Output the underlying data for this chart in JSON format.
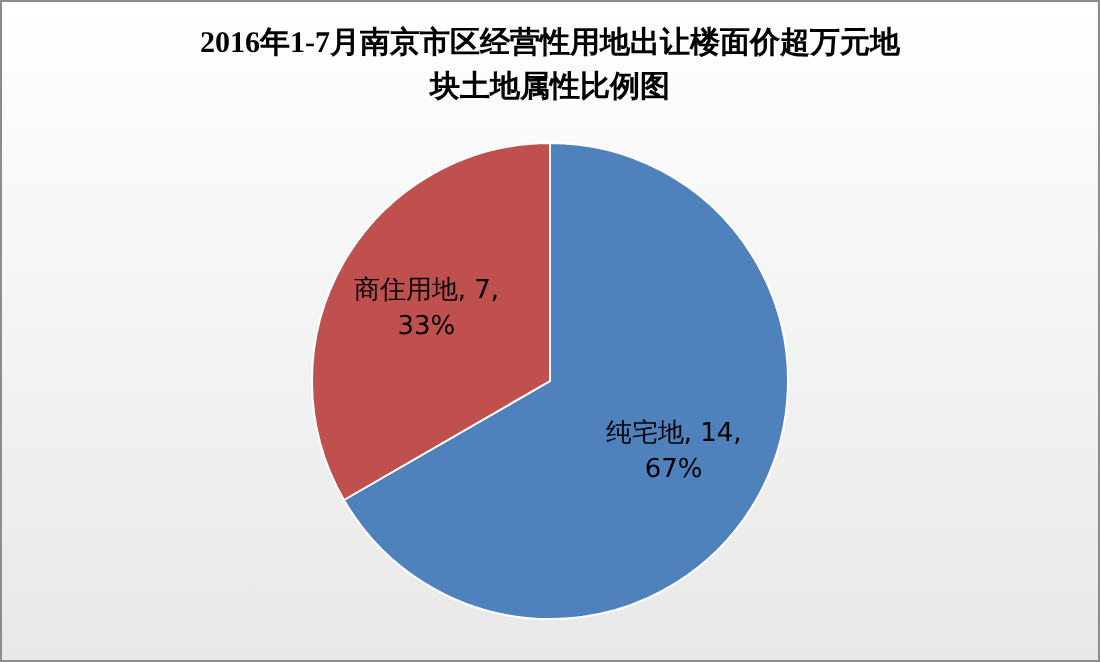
{
  "chart_data": {
    "type": "pie",
    "title": "2016年1-7月南京市区经营性用地出让楼面价超万元地块土地属性比例图",
    "categories": [
      "纯宅地",
      "商住用地"
    ],
    "values": [
      14,
      7
    ],
    "colors": [
      "#4f81bd",
      "#c0504d"
    ],
    "value_labels": [
      "14, 67%",
      "7, 33%"
    ],
    "legend": false
  }
}
